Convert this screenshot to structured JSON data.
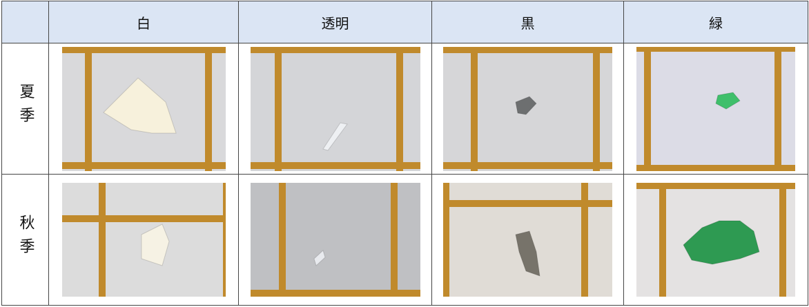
{
  "table": {
    "header": [
      "白",
      "透明",
      "黒",
      "緑"
    ],
    "row_labels": [
      "夏季",
      "秋季"
    ]
  }
}
